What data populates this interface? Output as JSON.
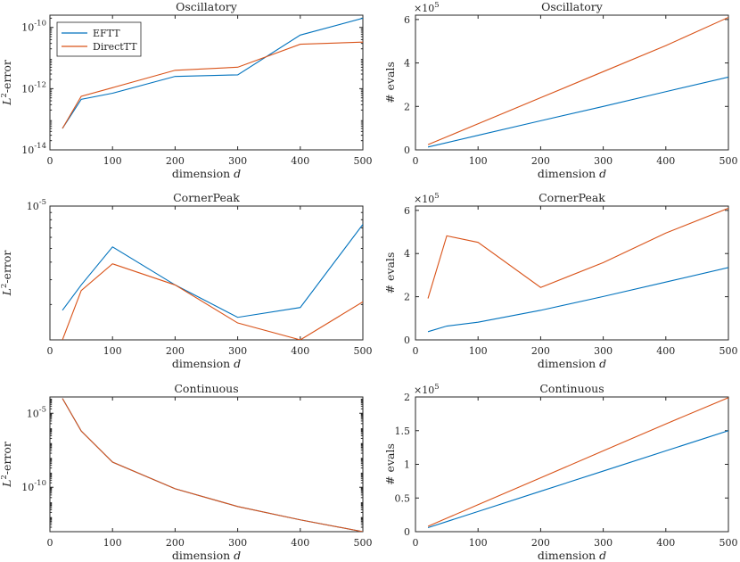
{
  "colors": {
    "EFTT": "#0072BD",
    "DirectTT": "#D95319",
    "axis": "#262626"
  },
  "legend": {
    "entries": [
      "EFTT",
      "DirectTT"
    ],
    "location": "top-left",
    "panel": 0
  },
  "chart_data": [
    {
      "type": "line",
      "title": "Oscillatory",
      "xlabel": "dimension",
      "xlabel_var": "d",
      "ylabel": "-error",
      "ylabel_prefix": "L",
      "ylabel_sup": "2",
      "yscale": "log",
      "xlim": [
        0,
        500
      ],
      "ylim_exp": [
        -14,
        -9.6
      ],
      "xticks": [
        0,
        100,
        200,
        300,
        400,
        500
      ],
      "yticks": [
        {
          "exp": -14,
          "base": "10",
          "sup": "-14"
        },
        {
          "exp": -12,
          "base": "10",
          "sup": "-12"
        },
        {
          "exp": -10,
          "base": "10",
          "sup": "-10"
        }
      ],
      "x": [
        20,
        50,
        100,
        200,
        300,
        400,
        500
      ],
      "series": [
        {
          "name": "EFTT",
          "log10": [
            -13.3,
            -12.35,
            -12.15,
            -11.6,
            -11.55,
            -10.25,
            -9.7
          ]
        },
        {
          "name": "DirectTT",
          "log10": [
            -13.3,
            -12.25,
            -11.97,
            -11.4,
            -11.3,
            -10.55,
            -10.48
          ]
        }
      ]
    },
    {
      "type": "line",
      "title": "Oscillatory",
      "xlabel": "dimension",
      "xlabel_var": "d",
      "ylabel": "# evals",
      "yscale": "linear",
      "xlim": [
        0,
        500
      ],
      "ylim": [
        0,
        6.2
      ],
      "y_multiplier_base": "×10",
      "y_multiplier_sup": "5",
      "xticks": [
        0,
        100,
        200,
        300,
        400,
        500
      ],
      "yticks": [
        {
          "value": 0,
          "label": "0"
        },
        {
          "value": 2,
          "label": "2"
        },
        {
          "value": 4,
          "label": "4"
        },
        {
          "value": 6,
          "label": "6"
        }
      ],
      "x": [
        20,
        50,
        100,
        200,
        300,
        400,
        500
      ],
      "series": [
        {
          "name": "EFTT",
          "values": [
            0.13,
            0.33,
            0.67,
            1.34,
            2.0,
            2.68,
            3.35
          ]
        },
        {
          "name": "DirectTT",
          "values": [
            0.24,
            0.6,
            1.2,
            2.4,
            3.6,
            4.8,
            6.1
          ]
        }
      ]
    },
    {
      "type": "line",
      "title": "CornerPeak",
      "xlabel": "dimension",
      "xlabel_var": "d",
      "ylabel": "-error",
      "ylabel_prefix": "L",
      "ylabel_sup": "2",
      "yscale": "log",
      "xlim": [
        0,
        500
      ],
      "ylim_exp": [
        -5.95,
        -5
      ],
      "xticks": [
        0,
        100,
        200,
        300,
        400,
        500
      ],
      "yticks": [
        {
          "exp": -5,
          "base": "10",
          "sup": "-5"
        }
      ],
      "x": [
        20,
        50,
        100,
        200,
        300,
        400,
        500
      ],
      "series": [
        {
          "name": "EFTT",
          "log10": [
            -5.74,
            -5.56,
            -5.29,
            -5.56,
            -5.79,
            -5.72,
            -5.13
          ]
        },
        {
          "name": "DirectTT",
          "log10": [
            -5.95,
            -5.6,
            -5.41,
            -5.56,
            -5.83,
            -5.95,
            -5.68
          ]
        }
      ]
    },
    {
      "type": "line",
      "title": "CornerPeak",
      "xlabel": "dimension",
      "xlabel_var": "d",
      "ylabel": "# evals",
      "yscale": "linear",
      "xlim": [
        0,
        500
      ],
      "ylim": [
        0,
        6.2
      ],
      "y_multiplier_base": "×10",
      "y_multiplier_sup": "5",
      "xticks": [
        0,
        100,
        200,
        300,
        400,
        500
      ],
      "yticks": [
        {
          "value": 0,
          "label": "0"
        },
        {
          "value": 2,
          "label": "2"
        },
        {
          "value": 4,
          "label": "4"
        },
        {
          "value": 6,
          "label": "6"
        }
      ],
      "x": [
        20,
        50,
        100,
        200,
        300,
        400,
        500
      ],
      "series": [
        {
          "name": "EFTT",
          "values": [
            0.38,
            0.64,
            0.82,
            1.37,
            2.01,
            2.68,
            3.35
          ]
        },
        {
          "name": "DirectTT",
          "values": [
            1.92,
            4.82,
            4.52,
            2.43,
            3.58,
            4.95,
            6.1
          ]
        }
      ]
    },
    {
      "type": "line",
      "title": "Continuous",
      "xlabel": "dimension",
      "xlabel_var": "d",
      "ylabel": "-error",
      "ylabel_prefix": "L",
      "ylabel_sup": "2",
      "yscale": "log",
      "xlim": [
        0,
        500
      ],
      "ylim_exp": [
        -13,
        -3.9
      ],
      "xticks": [
        0,
        100,
        200,
        300,
        400,
        500
      ],
      "yticks": [
        {
          "exp": -10,
          "base": "10",
          "sup": "-10"
        },
        {
          "exp": -5,
          "base": "10",
          "sup": "-5"
        }
      ],
      "x": [
        20,
        50,
        100,
        200,
        300,
        400,
        500
      ],
      "series": [
        {
          "name": "EFTT",
          "log10": [
            -4,
            -6.2,
            -8.3,
            -10.1,
            -11.3,
            -12.2,
            -13.0
          ]
        },
        {
          "name": "DirectTT",
          "log10": [
            -4,
            -6.2,
            -8.3,
            -10.1,
            -11.3,
            -12.2,
            -13.0
          ]
        }
      ]
    },
    {
      "type": "line",
      "title": "Continuous",
      "xlabel": "dimension",
      "xlabel_var": "d",
      "ylabel": "# evals",
      "yscale": "linear",
      "xlim": [
        0,
        500
      ],
      "ylim": [
        0,
        2
      ],
      "y_multiplier_base": "×10",
      "y_multiplier_sup": "5",
      "xticks": [
        0,
        100,
        200,
        300,
        400,
        500
      ],
      "yticks": [
        {
          "value": 0,
          "label": "0"
        },
        {
          "value": 0.5,
          "label": "0.5"
        },
        {
          "value": 1,
          "label": "1"
        },
        {
          "value": 1.5,
          "label": "1.5"
        },
        {
          "value": 2,
          "label": "2"
        }
      ],
      "x": [
        20,
        50,
        100,
        200,
        300,
        400,
        500
      ],
      "series": [
        {
          "name": "EFTT",
          "values": [
            0.06,
            0.15,
            0.3,
            0.6,
            0.9,
            1.2,
            1.5
          ]
        },
        {
          "name": "DirectTT",
          "values": [
            0.08,
            0.2,
            0.4,
            0.8,
            1.2,
            1.6,
            1.99
          ]
        }
      ]
    }
  ]
}
